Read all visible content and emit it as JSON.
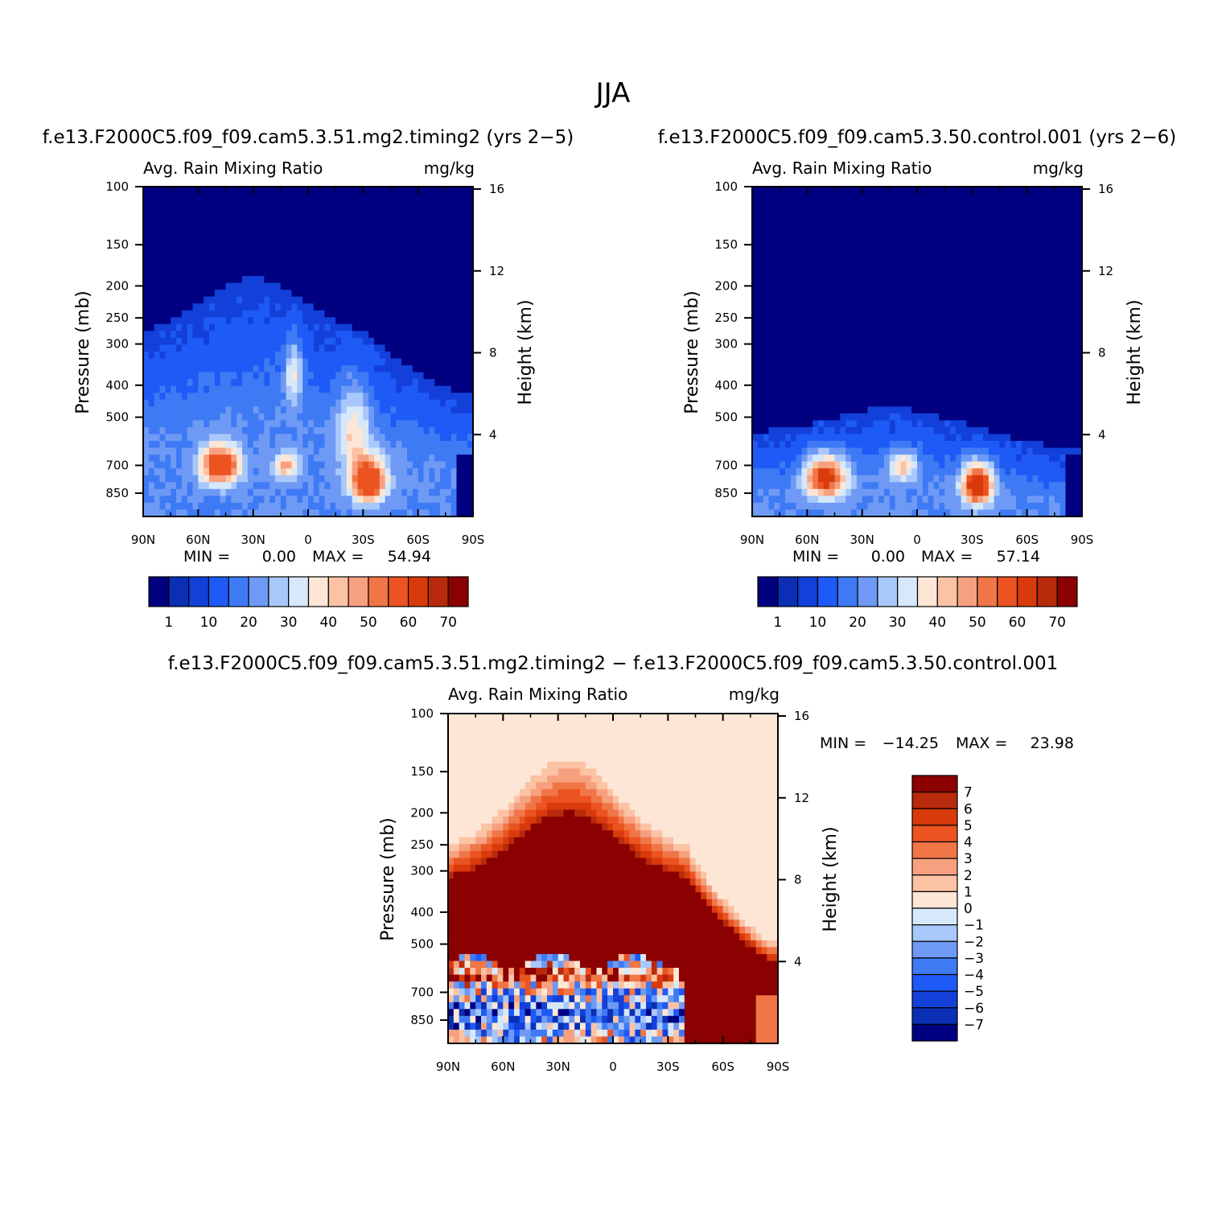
{
  "figure": {
    "title": "JJA",
    "variable": "Avg. Rain Mixing Ratio",
    "units": "mg/kg"
  },
  "colors": {
    "seq": [
      "#000080",
      "#0a2fb4",
      "#1240d8",
      "#1e5af5",
      "#3f7af5",
      "#6e9af5",
      "#a8c8fb",
      "#d6e8fa",
      "#fde6d5",
      "#fbc2a4",
      "#f7a080",
      "#f07647",
      "#eb5320",
      "#d93a0c",
      "#b82a0c",
      "#8b0000"
    ],
    "div": [
      "#000080",
      "#0a2fb4",
      "#1240d8",
      "#1e5af5",
      "#3f7af5",
      "#6e9af5",
      "#a8c8fb",
      "#d6e8fa",
      "#fde6d5",
      "#fbc2a4",
      "#f7a080",
      "#f07647",
      "#eb5320",
      "#d93a0c",
      "#b82a0c",
      "#8b0000"
    ]
  },
  "chart_data": [
    {
      "id": "panel1",
      "type": "heatmap",
      "case_title": "f.e13.F2000C5.f09_f09.cam5.3.51.mg2.timing2 (yrs 2-5)",
      "left_title": "Avg. Rain Mixing Ratio",
      "right_title": "mg/kg",
      "xlabel": "",
      "ylabel": "Pressure (mb)",
      "ylabel_right": "Height (km)",
      "x_ticks": [
        "90N",
        "60N",
        "30N",
        "0",
        "30S",
        "60S",
        "90S"
      ],
      "y_ticks": [
        100,
        150,
        200,
        250,
        300,
        400,
        500,
        700,
        850
      ],
      "y_right_ticks": [
        16,
        12,
        8,
        4
      ],
      "xlim": [
        90,
        -90
      ],
      "ylim": [
        100,
        1000
      ],
      "min_label": "MIN =",
      "min_value": "0.00",
      "max_label": "MAX =",
      "max_value": "54.94",
      "colorbar_labels": [
        "1",
        "10",
        "20",
        "30",
        "40",
        "50",
        "60",
        "70"
      ],
      "field": {
        "max_value": 54.94,
        "top_base_mb": 290,
        "top_peak_mb": 190,
        "top_peak_lat": 30,
        "top_south_mb": 420,
        "blobs": [
          {
            "lat": 48,
            "p": 700,
            "value": 52,
            "sx": 10,
            "sy": 90
          },
          {
            "lat": -33,
            "p": 780,
            "value": 55,
            "sx": 9,
            "sy": 110
          },
          {
            "lat": 12,
            "p": 700,
            "value": 28,
            "sx": 7,
            "sy": 60
          },
          {
            "lat": 8,
            "p": 370,
            "value": 22,
            "sx": 5,
            "sy": 80
          },
          {
            "lat": -25,
            "p": 550,
            "value": 20,
            "sx": 9,
            "sy": 170
          }
        ]
      }
    },
    {
      "id": "panel2",
      "type": "heatmap",
      "case_title": "f.e13.F2000C5.f09_f09.cam5.3.50.control.001 (yrs 2-6)",
      "left_title": "Avg. Rain Mixing Ratio",
      "right_title": "mg/kg",
      "xlabel": "",
      "ylabel": "Pressure (mb)",
      "ylabel_right": "Height (km)",
      "x_ticks": [
        "90N",
        "60N",
        "30N",
        "0",
        "30S",
        "60S",
        "90S"
      ],
      "y_ticks": [
        100,
        150,
        200,
        250,
        300,
        400,
        500,
        700,
        850
      ],
      "y_right_ticks": [
        16,
        12,
        8,
        4
      ],
      "xlim": [
        90,
        -90
      ],
      "ylim": [
        100,
        1000
      ],
      "min_label": "MIN =",
      "min_value": "0.00",
      "max_label": "MAX =",
      "max_value": "57.14",
      "colorbar_labels": [
        "1",
        "10",
        "20",
        "30",
        "40",
        "50",
        "60",
        "70"
      ],
      "field": {
        "max_value": 57.14,
        "top_base_mb": 560,
        "top_peak_mb": 470,
        "top_peak_lat": 15,
        "top_south_mb": 620,
        "blobs": [
          {
            "lat": 50,
            "p": 760,
            "value": 48,
            "sx": 11,
            "sy": 110
          },
          {
            "lat": -33,
            "p": 800,
            "value": 57,
            "sx": 8,
            "sy": 110
          },
          {
            "lat": 8,
            "p": 700,
            "value": 26,
            "sx": 8,
            "sy": 70
          }
        ]
      }
    },
    {
      "id": "diff",
      "type": "heatmap",
      "case_title": "f.e13.F2000C5.f09_f09.cam5.3.51.mg2.timing2 - f.e13.F2000C5.f09_f09.cam5.3.50.control.001",
      "left_title": "Avg. Rain Mixing Ratio",
      "right_title": "mg/kg",
      "xlabel": "",
      "ylabel": "Pressure (mb)",
      "ylabel_right": "Height (km)",
      "x_ticks": [
        "90N",
        "60N",
        "30N",
        "0",
        "30S",
        "60S",
        "90S"
      ],
      "y_ticks": [
        100,
        150,
        200,
        250,
        300,
        400,
        500,
        700,
        850
      ],
      "y_right_ticks": [
        16,
        12,
        8,
        4
      ],
      "xlim": [
        90,
        -90
      ],
      "ylim": [
        100,
        1000
      ],
      "min_label": "MIN =",
      "min_value": "-14.25",
      "max_label": "MAX =",
      "max_value": "23.98",
      "colorbar_labels": [
        "7",
        "6",
        "5",
        "4",
        "3",
        "2",
        "1",
        "0",
        "-1",
        "-2",
        "-3",
        "-4",
        "-5",
        "-6",
        "-7"
      ]
    }
  ]
}
